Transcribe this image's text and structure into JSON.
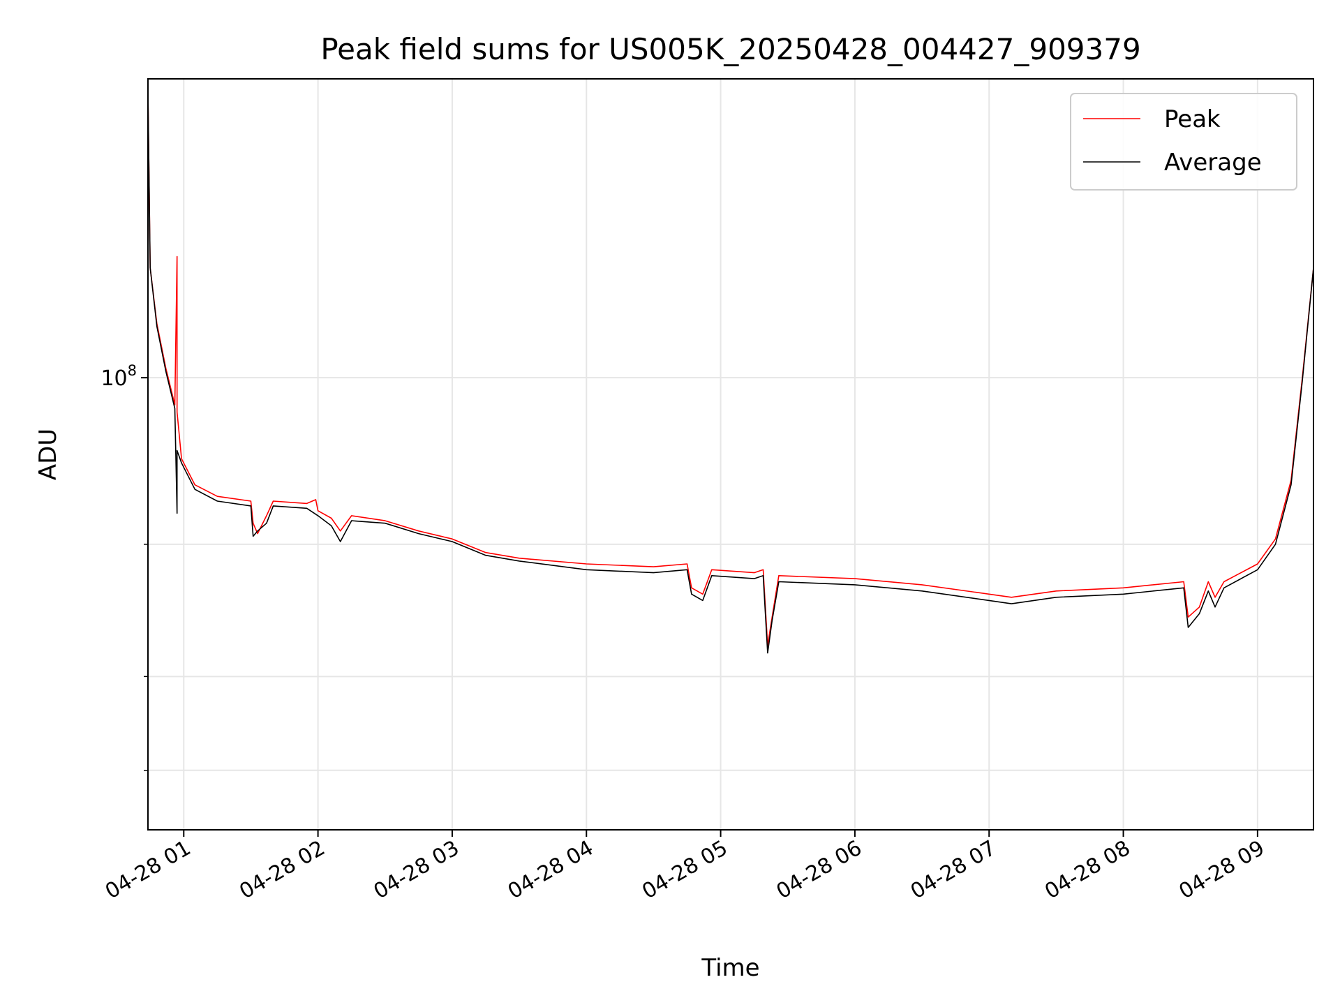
{
  "chart_data": {
    "type": "line",
    "title": "Peak field sums for US005K_20250428_004427_909379",
    "xlabel": "Time",
    "ylabel": "ADU",
    "y_scale": "log",
    "xlim": [
      "2025-04-28 00:44",
      "2025-04-28 09:25"
    ],
    "ylim": [
      25000000,
      250000000
    ],
    "x_ticks": [
      "2025-04-28 01:00",
      "2025-04-28 02:00",
      "2025-04-28 03:00",
      "2025-04-28 04:00",
      "2025-04-28 05:00",
      "2025-04-28 06:00",
      "2025-04-28 07:00",
      "2025-04-28 08:00",
      "2025-04-28 09:00"
    ],
    "x_tick_labels": [
      "04-28 01",
      "04-28 02",
      "04-28 03",
      "04-28 04",
      "04-28 05",
      "04-28 06",
      "04-28 07",
      "04-28 08",
      "04-28 09"
    ],
    "y_ticks": [
      100000000
    ],
    "y_tick_labels": [
      {
        "base": "10",
        "exp": "8"
      }
    ],
    "y_minor_ticks": [
      30000000,
      40000000,
      60000000
    ],
    "grid": true,
    "legend": "top-right",
    "series": [
      {
        "name": "Peak",
        "color": "#ff0000",
        "points": [
          [
            "2025-04-28 00:44",
            240000000
          ],
          [
            "2025-04-28 00:45",
            140000000
          ],
          [
            "2025-04-28 00:48",
            118000000
          ],
          [
            "2025-04-28 00:52",
            103000000
          ],
          [
            "2025-04-28 00:56",
            92000000
          ],
          [
            "2025-04-28 00:57",
            145000000
          ],
          [
            "2025-04-28 00:57",
            90000000
          ],
          [
            "2025-04-28 00:59",
            78000000
          ],
          [
            "2025-04-28 01:05",
            72000000
          ],
          [
            "2025-04-28 01:15",
            69500000
          ],
          [
            "2025-04-28 01:30",
            68500000
          ],
          [
            "2025-04-28 01:31",
            64000000
          ],
          [
            "2025-04-28 01:33",
            62000000
          ],
          [
            "2025-04-28 01:37",
            65500000
          ],
          [
            "2025-04-28 01:40",
            68500000
          ],
          [
            "2025-04-28 01:55",
            68000000
          ],
          [
            "2025-04-28 01:59",
            68800000
          ],
          [
            "2025-04-28 02:00",
            66500000
          ],
          [
            "2025-04-28 02:06",
            65000000
          ],
          [
            "2025-04-28 02:10",
            62500000
          ],
          [
            "2025-04-28 02:15",
            65500000
          ],
          [
            "2025-04-28 02:30",
            64500000
          ],
          [
            "2025-04-28 02:45",
            62500000
          ],
          [
            "2025-04-28 03:00",
            61000000
          ],
          [
            "2025-04-28 03:15",
            58500000
          ],
          [
            "2025-04-28 03:30",
            57500000
          ],
          [
            "2025-04-28 04:00",
            56500000
          ],
          [
            "2025-04-28 04:30",
            56000000
          ],
          [
            "2025-04-28 04:45",
            56500000
          ],
          [
            "2025-04-28 04:47",
            52500000
          ],
          [
            "2025-04-28 04:52",
            51500000
          ],
          [
            "2025-04-28 04:56",
            55500000
          ],
          [
            "2025-04-28 05:15",
            55000000
          ],
          [
            "2025-04-28 05:19",
            55500000
          ],
          [
            "2025-04-28 05:21",
            44000000
          ],
          [
            "2025-04-28 05:23",
            48000000
          ],
          [
            "2025-04-28 05:26",
            54500000
          ],
          [
            "2025-04-28 06:00",
            54000000
          ],
          [
            "2025-04-28 06:30",
            53000000
          ],
          [
            "2025-04-28 07:00",
            51500000
          ],
          [
            "2025-04-28 07:10",
            51000000
          ],
          [
            "2025-04-28 07:30",
            52000000
          ],
          [
            "2025-04-28 08:00",
            52500000
          ],
          [
            "2025-04-28 08:27",
            53500000
          ],
          [
            "2025-04-28 08:29",
            48000000
          ],
          [
            "2025-04-28 08:34",
            49500000
          ],
          [
            "2025-04-28 08:38",
            53500000
          ],
          [
            "2025-04-28 08:41",
            51000000
          ],
          [
            "2025-04-28 08:45",
            53500000
          ],
          [
            "2025-04-28 09:00",
            56500000
          ],
          [
            "2025-04-28 09:08",
            61000000
          ],
          [
            "2025-04-28 09:15",
            73000000
          ],
          [
            "2025-04-28 09:20",
            100000000
          ],
          [
            "2025-04-28 09:25",
            140000000
          ]
        ]
      },
      {
        "name": "Average",
        "color": "#000000",
        "points": [
          [
            "2025-04-28 00:44",
            240000000
          ],
          [
            "2025-04-28 00:45",
            140000000
          ],
          [
            "2025-04-28 00:48",
            117000000
          ],
          [
            "2025-04-28 00:52",
            102000000
          ],
          [
            "2025-04-28 00:56",
            91000000
          ],
          [
            "2025-04-28 00:57",
            66000000
          ],
          [
            "2025-04-28 00:57",
            80000000
          ],
          [
            "2025-04-28 00:59",
            77000000
          ],
          [
            "2025-04-28 01:05",
            71000000
          ],
          [
            "2025-04-28 01:15",
            68500000
          ],
          [
            "2025-04-28 01:30",
            67500000
          ],
          [
            "2025-04-28 01:31",
            61500000
          ],
          [
            "2025-04-28 01:33",
            62500000
          ],
          [
            "2025-04-28 01:37",
            64000000
          ],
          [
            "2025-04-28 01:40",
            67500000
          ],
          [
            "2025-04-28 01:55",
            67000000
          ],
          [
            "2025-04-28 02:00",
            65500000
          ],
          [
            "2025-04-28 02:06",
            63500000
          ],
          [
            "2025-04-28 02:10",
            60500000
          ],
          [
            "2025-04-28 02:15",
            64500000
          ],
          [
            "2025-04-28 02:30",
            64000000
          ],
          [
            "2025-04-28 02:45",
            62000000
          ],
          [
            "2025-04-28 03:00",
            60500000
          ],
          [
            "2025-04-28 03:15",
            58000000
          ],
          [
            "2025-04-28 03:30",
            57000000
          ],
          [
            "2025-04-28 04:00",
            55500000
          ],
          [
            "2025-04-28 04:30",
            55000000
          ],
          [
            "2025-04-28 04:45",
            55500000
          ],
          [
            "2025-04-28 04:47",
            51500000
          ],
          [
            "2025-04-28 04:52",
            50500000
          ],
          [
            "2025-04-28 04:56",
            54500000
          ],
          [
            "2025-04-28 05:15",
            54000000
          ],
          [
            "2025-04-28 05:19",
            54500000
          ],
          [
            "2025-04-28 05:21",
            43000000
          ],
          [
            "2025-04-28 05:23",
            47500000
          ],
          [
            "2025-04-28 05:26",
            53500000
          ],
          [
            "2025-04-28 06:00",
            53000000
          ],
          [
            "2025-04-28 06:30",
            52000000
          ],
          [
            "2025-04-28 07:00",
            50500000
          ],
          [
            "2025-04-28 07:10",
            50000000
          ],
          [
            "2025-04-28 07:30",
            51000000
          ],
          [
            "2025-04-28 08:00",
            51500000
          ],
          [
            "2025-04-28 08:27",
            52500000
          ],
          [
            "2025-04-28 08:29",
            46500000
          ],
          [
            "2025-04-28 08:34",
            48500000
          ],
          [
            "2025-04-28 08:38",
            52000000
          ],
          [
            "2025-04-28 08:41",
            49500000
          ],
          [
            "2025-04-28 08:45",
            52500000
          ],
          [
            "2025-04-28 09:00",
            55500000
          ],
          [
            "2025-04-28 09:08",
            60000000
          ],
          [
            "2025-04-28 09:15",
            72000000
          ],
          [
            "2025-04-28 09:20",
            99000000
          ],
          [
            "2025-04-28 09:25",
            140000000
          ]
        ]
      }
    ]
  }
}
